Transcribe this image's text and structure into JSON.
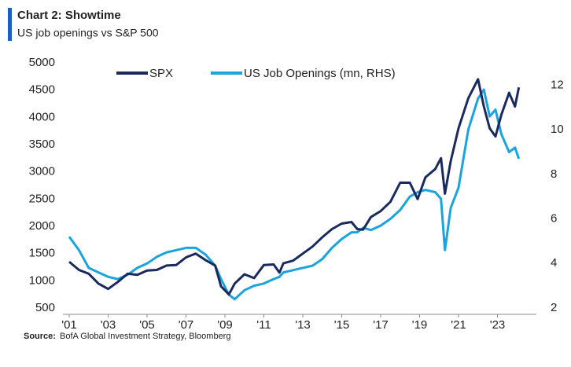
{
  "chart_data": {
    "type": "line",
    "title": "Chart 2: Showtime",
    "subtitle": "US job openings vs S&P 500",
    "source_label": "Source:",
    "source_text": "BofA Global Investment Strategy, Bloomberg",
    "x": [
      2001.0,
      2001.5,
      2002.0,
      2002.5,
      2003.0,
      2003.5,
      2004.0,
      2004.5,
      2005.0,
      2005.5,
      2006.0,
      2006.5,
      2007.0,
      2007.5,
      2008.0,
      2008.5,
      2008.8,
      2009.2,
      2009.5,
      2010.0,
      2010.5,
      2011.0,
      2011.5,
      2011.8,
      2012.0,
      2012.5,
      2013.0,
      2013.5,
      2014.0,
      2014.5,
      2015.0,
      2015.5,
      2015.8,
      2016.1,
      2016.5,
      2017.0,
      2017.5,
      2018.0,
      2018.5,
      2018.9,
      2019.3,
      2019.8,
      2020.1,
      2020.3,
      2020.6,
      2021.0,
      2021.5,
      2022.0,
      2022.3,
      2022.6,
      2022.9,
      2023.2,
      2023.6,
      2023.9,
      2024.1
    ],
    "series": [
      {
        "name": "SPX",
        "color": "#1b2a5e",
        "values": [
          1350,
          1200,
          1130,
          950,
          850,
          980,
          1130,
          1110,
          1190,
          1200,
          1280,
          1290,
          1430,
          1500,
          1380,
          1280,
          900,
          750,
          950,
          1120,
          1050,
          1290,
          1300,
          1150,
          1320,
          1370,
          1500,
          1630,
          1800,
          1950,
          2050,
          2080,
          1950,
          1940,
          2170,
          2280,
          2450,
          2800,
          2800,
          2500,
          2900,
          3050,
          3250,
          2600,
          3200,
          3800,
          4350,
          4700,
          4200,
          3800,
          3650,
          4050,
          4450,
          4200,
          4550
        ]
      },
      {
        "name": "US Job Openings (mn, RHS)",
        "color": "#1aa3dc",
        "axis": "y2",
        "values": [
          5.2,
          4.6,
          3.8,
          3.6,
          3.4,
          3.3,
          3.5,
          3.8,
          4.0,
          4.3,
          4.5,
          4.6,
          4.7,
          4.7,
          4.4,
          3.9,
          3.3,
          2.6,
          2.4,
          2.8,
          3.0,
          3.1,
          3.3,
          3.4,
          3.6,
          3.7,
          3.8,
          3.9,
          4.2,
          4.7,
          5.1,
          5.4,
          5.4,
          5.6,
          5.5,
          5.7,
          6.0,
          6.4,
          7.0,
          7.2,
          7.3,
          7.2,
          6.9,
          4.6,
          6.5,
          7.4,
          10.0,
          11.4,
          11.8,
          10.6,
          10.9,
          9.8,
          9.0,
          9.2,
          8.7
        ]
      }
    ],
    "xlim": [
      2001,
      2025
    ],
    "xticks": [
      {
        "value": 2001,
        "label": "'01"
      },
      {
        "value": 2003,
        "label": "'03"
      },
      {
        "value": 2005,
        "label": "'05"
      },
      {
        "value": 2007,
        "label": "'07"
      },
      {
        "value": 2009,
        "label": "'09"
      },
      {
        "value": 2011,
        "label": "'11"
      },
      {
        "value": 2013,
        "label": "'13"
      },
      {
        "value": 2015,
        "label": "'15"
      },
      {
        "value": 2017,
        "label": "'17"
      },
      {
        "value": 2019,
        "label": "'19"
      },
      {
        "value": 2021,
        "label": "'21"
      },
      {
        "value": 2023,
        "label": "'23"
      }
    ],
    "ylim": [
      500,
      5000
    ],
    "yticks": [
      500,
      1000,
      1500,
      2000,
      2500,
      3000,
      3500,
      4000,
      4500,
      5000
    ],
    "y2lim": [
      2,
      13
    ],
    "y2ticks": [
      2,
      4,
      6,
      8,
      10,
      12
    ],
    "grid": false,
    "legend": "top"
  }
}
